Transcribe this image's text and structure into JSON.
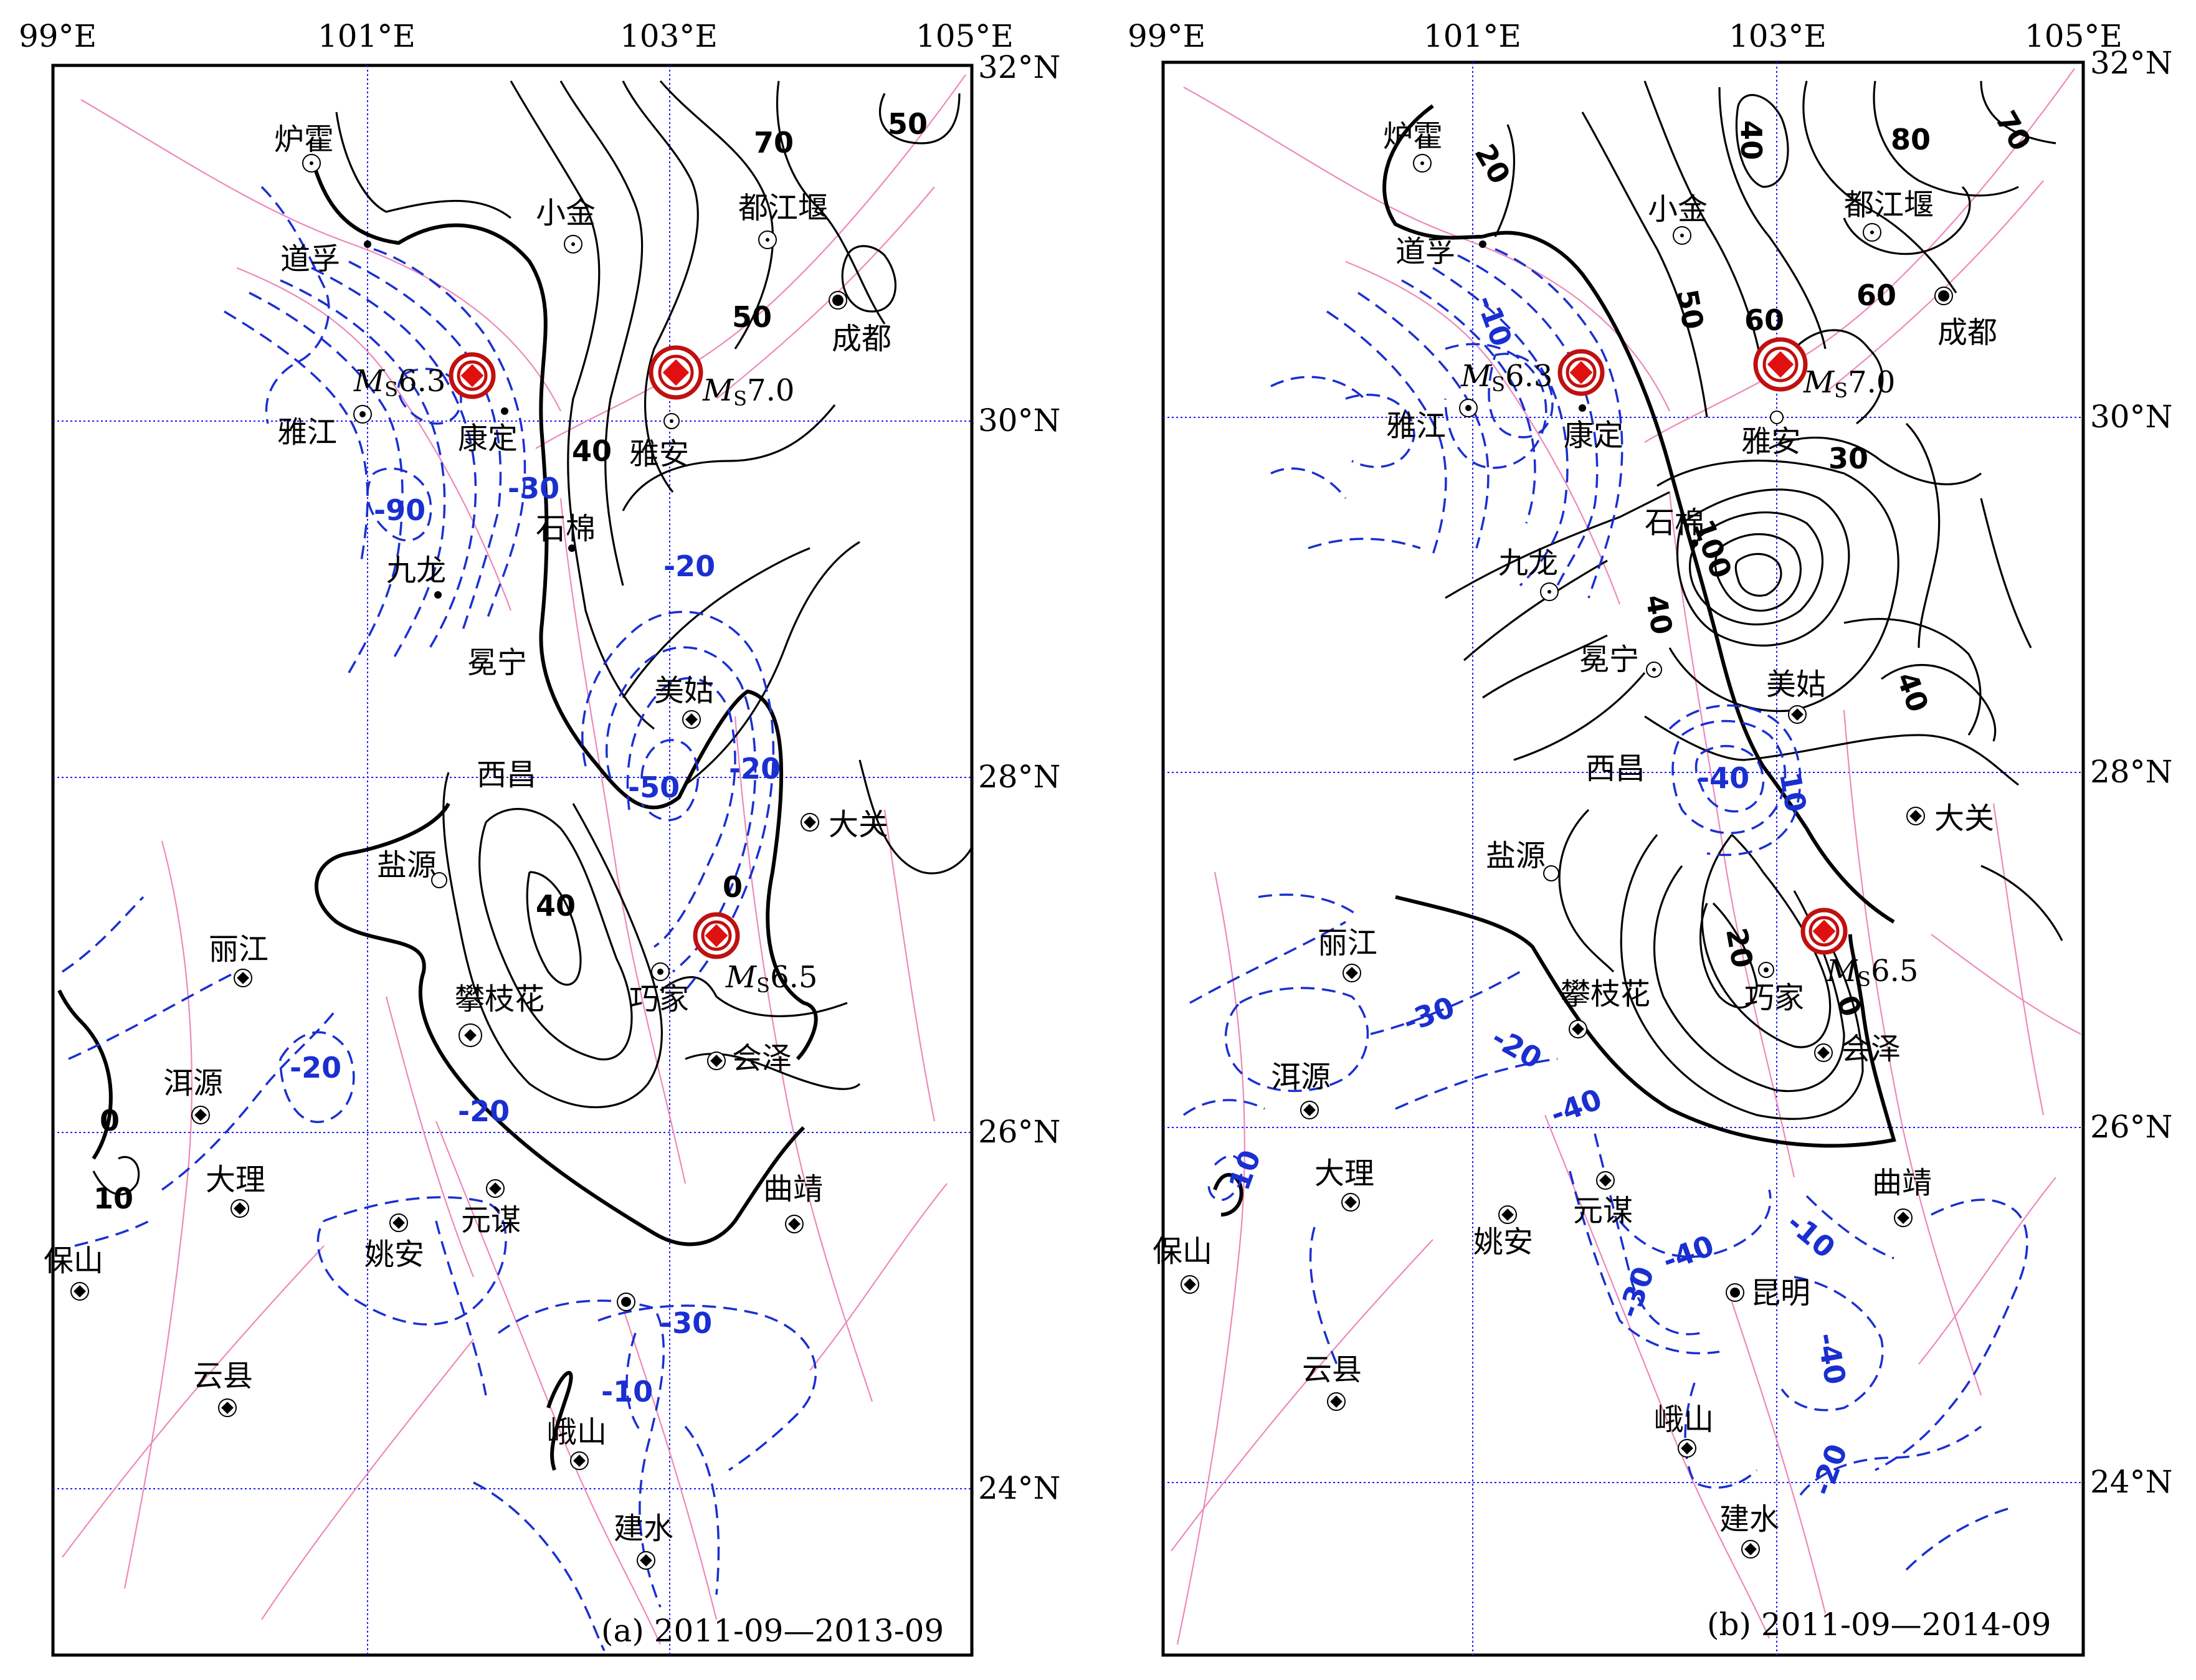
{
  "colors": {
    "positive_contour": "#000000",
    "negative_contour": "#1a2fd0",
    "fault_lines": "#ee88bb",
    "grid_lines": "#1a1aff",
    "earthquake_marker": "#e01010"
  },
  "icons": {
    "station": "circled-dot-icon",
    "city": "filled-dot-icon",
    "earthquake": "red-diamond-in-circle-icon"
  },
  "axes": {
    "lon_labels": [
      "99°E",
      "101°E",
      "103°E",
      "105°E"
    ],
    "lat_labels": [
      "32°N",
      "30°N",
      "28°N",
      "26°N",
      "24°N"
    ]
  },
  "panels": [
    {
      "caption": "(a) 2011-09—2013-09",
      "cities": [
        "炉霍",
        "道孚",
        "小金",
        "都江堰",
        "成都",
        "雅江",
        "康定",
        "雅安",
        "石棉",
        "九龙",
        "冕宁",
        "美姑",
        "西昌",
        "大关",
        "盐源",
        "丽江",
        "攀枝花",
        "巧家",
        "会泽",
        "洱源",
        "大理",
        "姚安",
        "元谋",
        "曲靖",
        "保山",
        "云县",
        "峨山",
        "建水"
      ],
      "earthquakes": [
        {
          "mag": "6.3",
          "prefix": "M",
          "sub": "S"
        },
        {
          "mag": "7.0",
          "prefix": "M",
          "sub": "S"
        },
        {
          "mag": "6.5",
          "prefix": "M",
          "sub": "S"
        }
      ],
      "contour_labels": [
        "70",
        "50",
        "50",
        "40",
        "40",
        "0",
        "0",
        "10",
        "-30",
        "-90",
        "-20",
        "-20",
        "-50",
        "-20",
        "-20",
        "-10",
        "-30"
      ]
    },
    {
      "caption": "(b) 2011-09—2014-09",
      "cities": [
        "炉霍",
        "道孚",
        "小金",
        "都江堰",
        "成都",
        "雅江",
        "康定",
        "雅安",
        "石棉",
        "九龙",
        "冕宁",
        "美姑",
        "西昌",
        "大关",
        "盐源",
        "丽江",
        "攀枝花",
        "巧家",
        "会泽",
        "洱源",
        "大理",
        "姚安",
        "元谋",
        "曲靖",
        "保山",
        "云县",
        "峨山",
        "建水",
        "昆明"
      ],
      "earthquakes": [
        {
          "mag": "6.3",
          "prefix": "M",
          "sub": "S"
        },
        {
          "mag": "7.0",
          "prefix": "M",
          "sub": "S"
        },
        {
          "mag": "6.5",
          "prefix": "M",
          "sub": "S"
        }
      ],
      "contour_labels": [
        "20",
        "40",
        "80",
        "70",
        "60",
        "50",
        "60",
        "30",
        "100",
        "40",
        "40",
        "20",
        "0",
        "-10",
        "-40",
        "10",
        "-30",
        "-20",
        "-40",
        "10",
        "-40",
        "-30",
        "-10",
        "-40",
        "-20"
      ]
    }
  ]
}
